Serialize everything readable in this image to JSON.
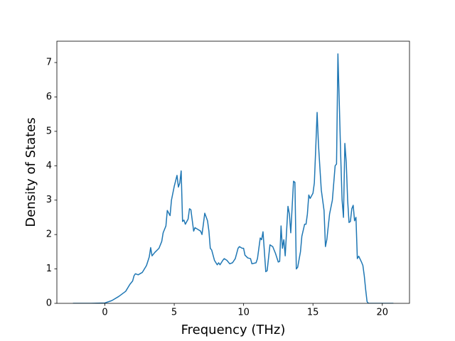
{
  "chart_data": {
    "type": "line",
    "xlabel": "Frequency (THz)",
    "ylabel": "Density of States",
    "color": "#1f77b4",
    "x": [
      -2.3,
      -1,
      0,
      0.5,
      1,
      1.5,
      1.8,
      2,
      2.1,
      2.2,
      2.4,
      2.7,
      3,
      3.2,
      3.3,
      3.4,
      3.6,
      3.9,
      4.1,
      4.2,
      4.4,
      4.5,
      4.7,
      4.8,
      5.0,
      5.2,
      5.3,
      5.4,
      5.5,
      5.6,
      5.7,
      5.8,
      6.0,
      6.1,
      6.2,
      6.4,
      6.5,
      6.7,
      6.9,
      7.0,
      7.1,
      7.2,
      7.4,
      7.5,
      7.6,
      7.7,
      7.9,
      8.1,
      8.2,
      8.3,
      8.5,
      8.6,
      8.8,
      9.0,
      9.2,
      9.4,
      9.6,
      9.7,
      9.9,
      10.0,
      10.1,
      10.3,
      10.5,
      10.6,
      10.9,
      11.0,
      11.2,
      11.3,
      11.4,
      11.6,
      11.7,
      11.9,
      12.1,
      12.3,
      12.5,
      12.6,
      12.7,
      12.8,
      12.9,
      13.0,
      13.2,
      13.3,
      13.4,
      13.6,
      13.7,
      13.8,
      13.9,
      14.1,
      14.2,
      14.4,
      14.5,
      14.6,
      14.7,
      14.8,
      15.0,
      15.1,
      15.2,
      15.3,
      15.4,
      15.6,
      15.8,
      15.9,
      16.0,
      16.2,
      16.4,
      16.6,
      16.7,
      16.8,
      16.9,
      17.0,
      17.1,
      17.2,
      17.3,
      17.4,
      17.5,
      17.6,
      17.7,
      17.8,
      17.9,
      18.0,
      18.1,
      18.2,
      18.3,
      18.5,
      18.6,
      18.7,
      18.8,
      18.9,
      19.0,
      20.8
    ],
    "values": [
      0,
      0,
      0.01,
      0.08,
      0.2,
      0.35,
      0.55,
      0.65,
      0.8,
      0.86,
      0.83,
      0.9,
      1.1,
      1.35,
      1.62,
      1.38,
      1.48,
      1.6,
      1.8,
      2.05,
      2.25,
      2.7,
      2.55,
      3.0,
      3.4,
      3.72,
      3.38,
      3.5,
      3.85,
      2.38,
      2.42,
      2.3,
      2.45,
      2.75,
      2.72,
      2.1,
      2.2,
      2.15,
      2.1,
      2.0,
      2.3,
      2.62,
      2.4,
      2.1,
      1.6,
      1.55,
      1.25,
      1.12,
      1.18,
      1.12,
      1.25,
      1.3,
      1.25,
      1.15,
      1.18,
      1.3,
      1.6,
      1.65,
      1.6,
      1.6,
      1.4,
      1.32,
      1.3,
      1.15,
      1.18,
      1.3,
      1.9,
      1.85,
      2.08,
      0.92,
      0.95,
      1.7,
      1.65,
      1.45,
      1.2,
      1.22,
      2.25,
      1.6,
      1.85,
      1.38,
      2.82,
      2.6,
      2.05,
      3.55,
      3.52,
      1.0,
      1.05,
      1.5,
      1.95,
      2.3,
      2.3,
      2.6,
      3.15,
      3.05,
      3.2,
      3.5,
      4.5,
      5.55,
      4.6,
      3.3,
      2.7,
      1.65,
      1.85,
      2.6,
      3.0,
      4.0,
      4.05,
      7.25,
      5.8,
      4.3,
      3.0,
      2.5,
      4.65,
      4.1,
      3.0,
      2.35,
      2.38,
      2.75,
      2.85,
      2.4,
      2.5,
      1.3,
      1.37,
      1.2,
      1.1,
      0.8,
      0.4,
      0.05,
      0,
      0
    ],
    "xlim": [
      -3.46,
      21.96
    ],
    "xticks": [
      0,
      5,
      10,
      15,
      20
    ],
    "ylim": [
      0,
      7.62
    ],
    "yticks": [
      0,
      1,
      2,
      3,
      4,
      5,
      6,
      7
    ]
  }
}
